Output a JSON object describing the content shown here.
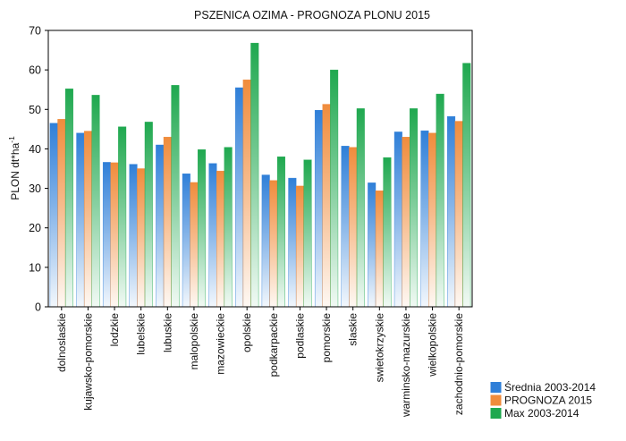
{
  "chart_data": {
    "type": "bar",
    "title": "PSZENICA OZIMA - PROGNOZA PLONU 2015",
    "ylabel_main": "PLON dt*ha",
    "ylabel_sup": "-1",
    "xlabel": "",
    "ylim": [
      0,
      70
    ],
    "yticks": [
      0,
      10,
      20,
      30,
      40,
      50,
      60,
      70
    ],
    "grid": false,
    "legend_position": "bottom-right, outside plot",
    "categories": [
      "dolnoslaskie",
      "kujawsko-pomorskie",
      "lodzkie",
      "lubelskie",
      "lubuskie",
      "malopolskie",
      "mazowieckie",
      "opolskie",
      "podkarpackie",
      "podlaskie",
      "pomorskie",
      "slaskie",
      "swietokrzyskie",
      "warminsko-mazurskie",
      "wielkopolskie",
      "zachodnio-pomorskie"
    ],
    "series": [
      {
        "name": "Średnia 2003-2014",
        "color": "#2f7fd8",
        "values": [
          46.5,
          44.0,
          36.6,
          36.1,
          41.0,
          33.7,
          36.3,
          55.5,
          33.4,
          32.6,
          49.8,
          40.7,
          31.4,
          44.3,
          44.6,
          48.2
        ]
      },
      {
        "name": "PROGNOZA 2015",
        "color": "#f08c3c",
        "values": [
          47.5,
          44.5,
          36.5,
          35.0,
          43.0,
          31.5,
          34.4,
          57.5,
          32.0,
          30.6,
          51.3,
          40.4,
          29.4,
          43.0,
          44.0,
          47.0
        ]
      },
      {
        "name": "Max 2003-2014",
        "color": "#1fa84f",
        "values": [
          55.2,
          53.6,
          45.6,
          46.8,
          56.1,
          39.8,
          40.4,
          66.8,
          38.0,
          37.2,
          60.0,
          50.2,
          37.8,
          50.2,
          53.9,
          61.7
        ]
      }
    ]
  }
}
